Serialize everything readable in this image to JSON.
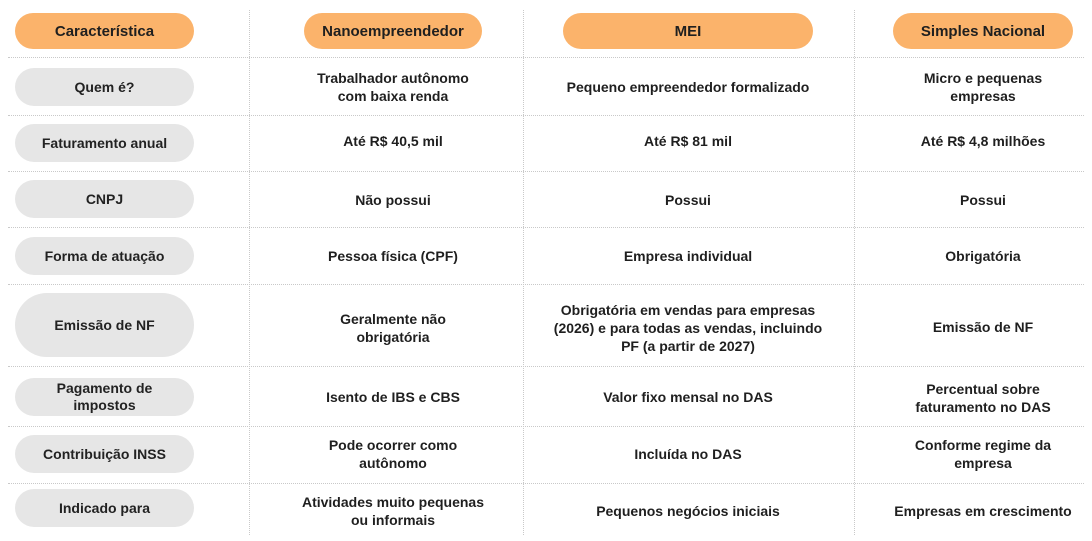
{
  "headers": {
    "characteristic": "Característica",
    "nano": "Nanoempreendedor",
    "mei": "MEI",
    "simples": "Simples Nacional"
  },
  "rows": [
    {
      "label": "Quem é?",
      "nano": "Trabalhador autônomo com baixa renda",
      "mei": "Pequeno empreendedor formalizado",
      "simples": "Micro e pequenas empresas"
    },
    {
      "label": "Faturamento anual",
      "nano": "Até R$ 40,5 mil",
      "mei": "Até R$ 81 mil",
      "simples": "Até R$ 4,8 milhões"
    },
    {
      "label": "CNPJ",
      "nano": "Não possui",
      "mei": "Possui",
      "simples": "Possui"
    },
    {
      "label": "Forma de atuação",
      "nano": "Pessoa física (CPF)",
      "mei": "Empresa individual",
      "simples": "Obrigatória"
    },
    {
      "label": "Emissão de NF",
      "nano": "Geralmente não obrigatória",
      "mei": "Obrigatória em vendas para empresas (2026) e para todas as vendas, incluindo PF (a partir de 2027)",
      "simples": "Emissão de NF"
    },
    {
      "label": "Pagamento de impostos",
      "nano": "Isento de IBS e CBS",
      "mei": "Valor fixo mensal no DAS",
      "simples": "Percentual sobre faturamento no DAS"
    },
    {
      "label": "Contribuição INSS",
      "nano": "Pode ocorrer como autônomo",
      "mei": "Incluída no DAS",
      "simples": "Conforme regime da empresa"
    },
    {
      "label": "Indicado para",
      "nano": "Atividades muito pequenas ou informais",
      "mei": "Pequenos negócios iniciais",
      "simples": "Empresas em crescimento"
    }
  ],
  "colors": {
    "header_pill": "#fbb36b",
    "label_pill": "#e6e6e6",
    "grid_dots": "#c9c9c9"
  }
}
